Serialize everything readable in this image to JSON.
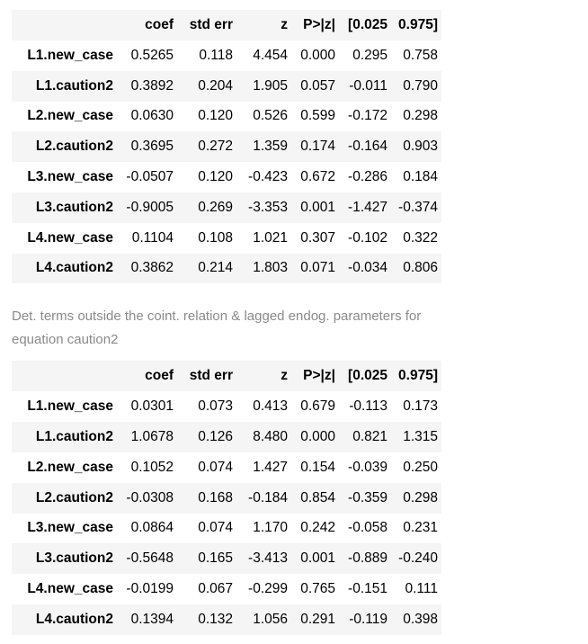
{
  "columns": [
    "",
    "coef",
    "std err",
    "z",
    "P>|z|",
    "[0.025",
    "0.975]"
  ],
  "table1": {
    "rows": [
      {
        "name": "L1.new_case",
        "coef": "0.5265",
        "se": "0.118",
        "z": "4.454",
        "p": "0.000",
        "lo": "0.295",
        "hi": "0.758"
      },
      {
        "name": "L1.caution2",
        "coef": "0.3892",
        "se": "0.204",
        "z": "1.905",
        "p": "0.057",
        "lo": "-0.011",
        "hi": "0.790"
      },
      {
        "name": "L2.new_case",
        "coef": "0.0630",
        "se": "0.120",
        "z": "0.526",
        "p": "0.599",
        "lo": "-0.172",
        "hi": "0.298"
      },
      {
        "name": "L2.caution2",
        "coef": "0.3695",
        "se": "0.272",
        "z": "1.359",
        "p": "0.174",
        "lo": "-0.164",
        "hi": "0.903"
      },
      {
        "name": "L3.new_case",
        "coef": "-0.0507",
        "se": "0.120",
        "z": "-0.423",
        "p": "0.672",
        "lo": "-0.286",
        "hi": "0.184"
      },
      {
        "name": "L3.caution2",
        "coef": "-0.9005",
        "se": "0.269",
        "z": "-3.353",
        "p": "0.001",
        "lo": "-1.427",
        "hi": "-0.374"
      },
      {
        "name": "L4.new_case",
        "coef": "0.1104",
        "se": "0.108",
        "z": "1.021",
        "p": "0.307",
        "lo": "-0.102",
        "hi": "0.322"
      },
      {
        "name": "L4.caution2",
        "coef": "0.3862",
        "se": "0.214",
        "z": "1.803",
        "p": "0.071",
        "lo": "-0.034",
        "hi": "0.806"
      }
    ]
  },
  "caption": "Det. terms outside the coint. relation & lagged endog. parameters for equation caution2",
  "table2": {
    "rows": [
      {
        "name": "L1.new_case",
        "coef": "0.0301",
        "se": "0.073",
        "z": "0.413",
        "p": "0.679",
        "lo": "-0.113",
        "hi": "0.173"
      },
      {
        "name": "L1.caution2",
        "coef": "1.0678",
        "se": "0.126",
        "z": "8.480",
        "p": "0.000",
        "lo": "0.821",
        "hi": "1.315"
      },
      {
        "name": "L2.new_case",
        "coef": "0.1052",
        "se": "0.074",
        "z": "1.427",
        "p": "0.154",
        "lo": "-0.039",
        "hi": "0.250"
      },
      {
        "name": "L2.caution2",
        "coef": "-0.0308",
        "se": "0.168",
        "z": "-0.184",
        "p": "0.854",
        "lo": "-0.359",
        "hi": "0.298"
      },
      {
        "name": "L3.new_case",
        "coef": "0.0864",
        "se": "0.074",
        "z": "1.170",
        "p": "0.242",
        "lo": "-0.058",
        "hi": "0.231"
      },
      {
        "name": "L3.caution2",
        "coef": "-0.5648",
        "se": "0.165",
        "z": "-3.413",
        "p": "0.001",
        "lo": "-0.889",
        "hi": "-0.240"
      },
      {
        "name": "L4.new_case",
        "coef": "-0.0199",
        "se": "0.067",
        "z": "-0.299",
        "p": "0.765",
        "lo": "-0.151",
        "hi": "0.111"
      },
      {
        "name": "L4.caution2",
        "coef": "0.1394",
        "se": "0.132",
        "z": "1.056",
        "p": "0.291",
        "lo": "-0.119",
        "hi": "0.398"
      }
    ]
  }
}
